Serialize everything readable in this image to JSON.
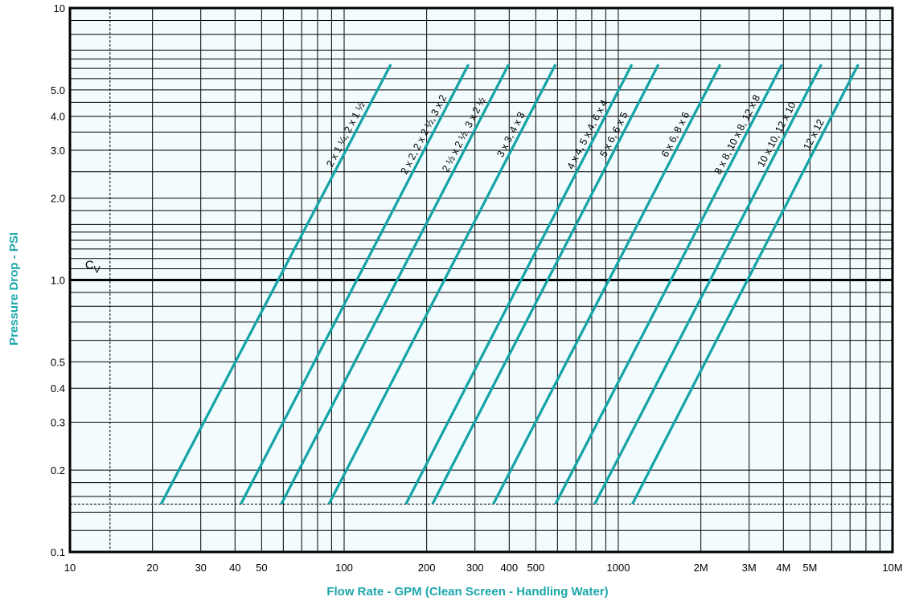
{
  "chart_data": {
    "type": "line",
    "title": "",
    "xlabel": "Flow Rate - GPM (Clean Screen - Handling Water)",
    "ylabel": "Pressure Drop - PSI",
    "x_scale": "log",
    "y_scale": "log",
    "xlim": [
      10,
      10000
    ],
    "ylim": [
      0.1,
      10
    ],
    "grid": true,
    "x_ticks": [
      {
        "value": 10,
        "label": "10"
      },
      {
        "value": 20,
        "label": "20"
      },
      {
        "value": 30,
        "label": "30"
      },
      {
        "value": 40,
        "label": "40"
      },
      {
        "value": 50,
        "label": "50"
      },
      {
        "value": 100,
        "label": "100"
      },
      {
        "value": 200,
        "label": "200"
      },
      {
        "value": 300,
        "label": "300"
      },
      {
        "value": 400,
        "label": "400"
      },
      {
        "value": 500,
        "label": "500"
      },
      {
        "value": 1000,
        "label": "1000"
      },
      {
        "value": 2000,
        "label": "2M"
      },
      {
        "value": 3000,
        "label": "3M"
      },
      {
        "value": 4000,
        "label": "4M"
      },
      {
        "value": 5000,
        "label": "5M"
      },
      {
        "value": 10000,
        "label": "10M"
      }
    ],
    "y_ticks": [
      {
        "value": 0.1,
        "label": "0.1"
      },
      {
        "value": 0.2,
        "label": "0.2"
      },
      {
        "value": 0.3,
        "label": "0.3"
      },
      {
        "value": 0.4,
        "label": "0.4"
      },
      {
        "value": 0.5,
        "label": "0.5"
      },
      {
        "value": 1.0,
        "label": "1.0"
      },
      {
        "value": 2.0,
        "label": "2.0"
      },
      {
        "value": 3.0,
        "label": "3.0"
      },
      {
        "value": 4.0,
        "label": "4.0"
      },
      {
        "value": 5.0,
        "label": "5.0"
      },
      {
        "value": 10,
        "label": "10"
      }
    ],
    "reference_lines": {
      "cv_y": 1.0,
      "cv_label": "C",
      "cv_subscript": "V",
      "min_y": 0.15,
      "dashed_x": 14
    },
    "series": [
      {
        "name": "2 x 1 ¼, 2 x 1 ½",
        "x": [
          21.5,
          148
        ],
        "y": [
          0.15,
          6.2
        ]
      },
      {
        "name": "2 x 2, 2 x 2 ½, 3 x 2",
        "x": [
          42,
          284
        ],
        "y": [
          0.15,
          6.2
        ]
      },
      {
        "name": "2 ½ x 2 ½, 3 x 2 ½",
        "x": [
          59,
          398
        ],
        "y": [
          0.15,
          6.2
        ]
      },
      {
        "name": "3 x 3, 4 x 3",
        "x": [
          88,
          590
        ],
        "y": [
          0.15,
          6.2
        ]
      },
      {
        "name": "4 x 4, 5 x 4, 6 x 4",
        "x": [
          168,
          1120
        ],
        "y": [
          0.15,
          6.2
        ]
      },
      {
        "name": "5 x 6, 6 x 5",
        "x": [
          210,
          1400
        ],
        "y": [
          0.15,
          6.2
        ]
      },
      {
        "name": "6 x 6, 8 x 6",
        "x": [
          350,
          2350
        ],
        "y": [
          0.15,
          6.2
        ]
      },
      {
        "name": "8 x 8, 10 x 8, 12 x 8",
        "x": [
          590,
          3950
        ],
        "y": [
          0.15,
          6.2
        ]
      },
      {
        "name": "10 x 10, 12 x 10",
        "x": [
          820,
          5500
        ],
        "y": [
          0.15,
          6.2
        ]
      },
      {
        "name": "12 x 12",
        "x": [
          1125,
          7500
        ],
        "y": [
          0.15,
          6.2
        ]
      }
    ],
    "colors": {
      "series": "#14a3a6",
      "axis_title": "#1aa6ab",
      "plot_background": "#f2fbfd",
      "grid": "#000000"
    }
  }
}
